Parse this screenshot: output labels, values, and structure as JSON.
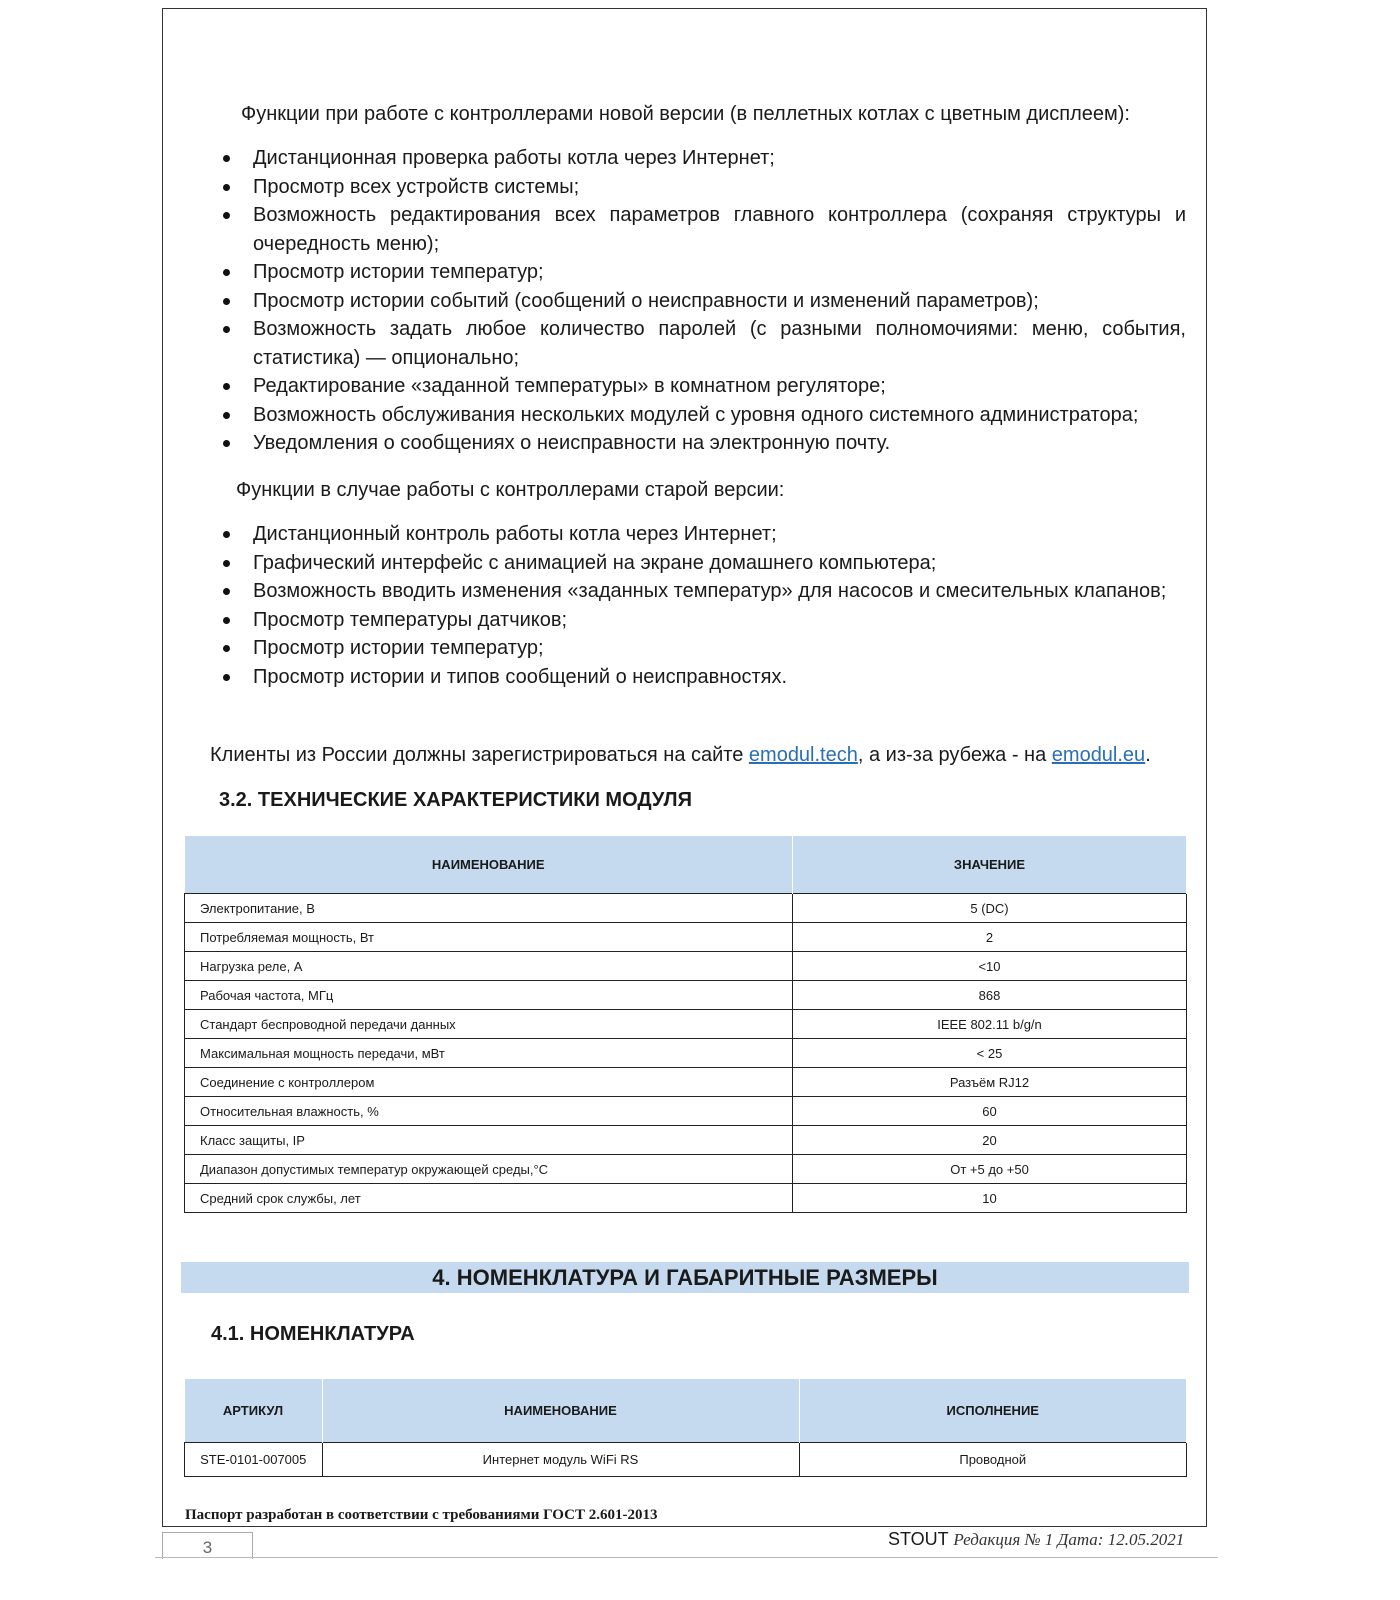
{
  "intro_new": "Функции при работе с контроллерами новой версии (в пеллетных котлах с цветным дисплеем):",
  "list_new": [
    "Дистанционная проверка работы котла через Интернет;",
    "Просмотр всех устройств системы;",
    "Возможность редактирования всех параметров главного контроллера (сохраняя структуры и очередность меню);",
    "Просмотр истории температур;",
    "Просмотр истории событий (сообщений о неисправности и изменений параметров);",
    "Возможность задать любое количество паролей (с разными полномочиями: меню, события, статистика) — опционально;",
    "Редактирование «заданной температуры» в комнатном регуляторе;",
    "Возможность обслуживания нескольких модулей с уровня одного системного администратора;",
    "Уведомления о сообщениях о неисправности на электронную почту."
  ],
  "intro_old": "Функции в случае работы с контроллерами старой версии:",
  "list_old": [
    "Дистанционный контроль работы котла через Интернет;",
    "Графический интерфейс с анимацией на экране домашнего компьютера;",
    "Возможность вводить изменения «заданных температур» для насосов и смесительных клапанов;",
    "Просмотр температуры датчиков;",
    "Просмотр истории температур;",
    "Просмотр истории и типов сообщений о неисправностях."
  ],
  "registration": {
    "text1": "Клиенты из России должны зарегистрироваться на сайте ",
    "link1": "emodul.tech",
    "text2": ", а из-за рубежа - на ",
    "link2": "emodul.eu",
    "text3": "."
  },
  "section_3_2": "3.2.  ТЕХНИЧЕСКИЕ ХАРАКТЕРИСТИКИ МОДУЛЯ",
  "spec_table": {
    "headers": [
      "НАИМЕНОВАНИЕ",
      "ЗНАЧЕНИЕ"
    ],
    "rows": [
      [
        "Электропитание, В",
        "5 (DC)"
      ],
      [
        "Потребляемая мощность, Вт",
        "2"
      ],
      [
        "Нагрузка реле, А",
        "<10"
      ],
      [
        "Рабочая частота, МГц",
        "868"
      ],
      [
        "Стандарт беспроводной передачи данных",
        "IEEE 802.11 b/g/n"
      ],
      [
        "Максимальная мощность передачи, мВт",
        "< 25"
      ],
      [
        "Соединение с контроллером",
        "Разъём RJ12"
      ],
      [
        "Относительная влажность, %",
        "60"
      ],
      [
        "Класс защиты, IP",
        "20"
      ],
      [
        "Диапазон допустимых температур окружающей среды,°С",
        "От +5 до +50"
      ],
      [
        "Средний срок службы, лет",
        "10"
      ]
    ]
  },
  "section_4": "4. НОМЕНКЛАТУРА И ГАБАРИТНЫЕ РАЗМЕРЫ",
  "section_4_1": "4.1. НОМЕНКЛАТУРА",
  "nom_table": {
    "headers": [
      "АРТИКУЛ",
      "НАИМЕНОВАНИЕ",
      "ИСПОЛНЕНИЕ"
    ],
    "rows": [
      [
        "STE-0101-007005",
        "Интернет модуль WiFi RS",
        "Проводной"
      ]
    ]
  },
  "footer": {
    "gost": "Паспорт разработан в соответствии с требованиями ГОСТ 2.601-2013",
    "brand": "STOUT",
    "revision": "Редакция № 1 Дата: 12.05.2021",
    "page_number": "3"
  },
  "colors": {
    "table_header": "#c5daef",
    "link": "#2a6fb5"
  }
}
